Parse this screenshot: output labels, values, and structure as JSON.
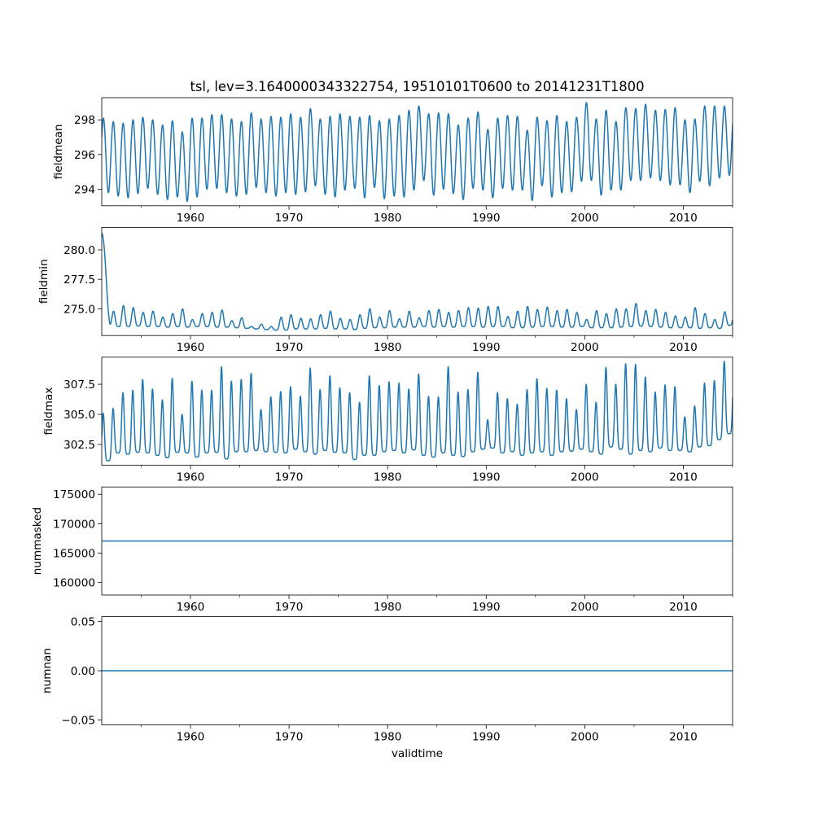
{
  "figure": {
    "title": "tsl, lev=3.1640000343322754, 19510101T0600 to 20141231T1800",
    "xlabel": "validtime",
    "line_color": "#1f77b4"
  },
  "chart_data": [
    {
      "type": "line",
      "ylabel": "fieldmean",
      "xlim": [
        1951.0,
        2015.0
      ],
      "ylim": [
        293.04,
        299.28
      ],
      "xticks": [
        1960,
        1970,
        1980,
        1990,
        2000,
        2010
      ],
      "xtick_labels": [
        "1960",
        "1970",
        "1980",
        "1990",
        "2000",
        "2010"
      ],
      "xminor_ticks": [
        1955,
        1965,
        1975,
        1985,
        1995,
        2005,
        2015
      ],
      "yticks": [
        294,
        296,
        298
      ],
      "ytick_labels": [
        "294",
        "296",
        "298"
      ],
      "series": {
        "description": "seasonal cycle; yearly maxima and minima 1951-2014",
        "start_year": 1951,
        "peak_phase": 0.17,
        "yearly_peaks": [
          298.1,
          297.9,
          297.8,
          298.0,
          298.15,
          298.0,
          297.7,
          297.95,
          297.3,
          298.1,
          298.1,
          298.3,
          298.3,
          298.05,
          297.9,
          298.4,
          298.05,
          298.2,
          298.15,
          298.35,
          298.15,
          298.65,
          298.05,
          298.2,
          298.35,
          298.2,
          298.15,
          298.25,
          297.95,
          298.05,
          298.25,
          298.55,
          298.8,
          298.35,
          298.4,
          298.35,
          297.7,
          298.1,
          298.45,
          297.45,
          298.1,
          298.25,
          298.2,
          297.4,
          298.15,
          297.95,
          298.25,
          297.9,
          298.15,
          299.0,
          298.05,
          298.55,
          297.9,
          298.7,
          298.65,
          298.9,
          298.55,
          298.6,
          298.7,
          298.0,
          298.05,
          298.8,
          298.8,
          298.8
        ],
        "yearly_troughs": [
          293.8,
          293.6,
          293.5,
          293.75,
          294.05,
          293.7,
          293.4,
          293.55,
          293.3,
          293.55,
          294.0,
          294.05,
          293.8,
          293.6,
          293.7,
          294.1,
          293.8,
          293.6,
          293.8,
          293.7,
          293.85,
          294.2,
          293.7,
          293.55,
          293.95,
          294.05,
          293.5,
          294.1,
          293.45,
          293.6,
          293.55,
          293.95,
          294.5,
          293.65,
          294.0,
          293.75,
          293.4,
          294.05,
          293.95,
          293.5,
          294.05,
          293.95,
          293.95,
          293.35,
          294.2,
          293.55,
          293.8,
          293.85,
          294.45,
          294.5,
          293.65,
          293.95,
          293.95,
          294.5,
          294.5,
          294.65,
          294.5,
          294.25,
          294.25,
          293.8,
          294.45,
          294.2,
          294.65,
          294.8
        ]
      }
    },
    {
      "type": "line",
      "ylabel": "fieldmin",
      "xlim": [
        1951.0,
        2015.0
      ],
      "ylim": [
        272.74,
        281.9
      ],
      "xticks": [
        1960,
        1970,
        1980,
        1990,
        2000,
        2010
      ],
      "xtick_labels": [
        "1960",
        "1970",
        "1980",
        "1990",
        "2000",
        "2010"
      ],
      "xminor_ticks": [
        1955,
        1965,
        1975,
        1985,
        1995,
        2005,
        2015
      ],
      "yticks": [
        275.0,
        277.5,
        280.0
      ],
      "ytick_labels": [
        "275.0",
        "277.5",
        "280.0"
      ],
      "series": {
        "description": "initial spin-down from 281.4 during 1951, then seasonal cycle",
        "start_year": 1951,
        "initial_value": 281.4,
        "peak_phase": 0.2,
        "yearly_peaks": [
          274.6,
          274.8,
          275.27,
          275.1,
          274.7,
          274.8,
          274.3,
          274.6,
          275.0,
          274.1,
          274.6,
          274.7,
          274.9,
          274.0,
          274.25,
          273.5,
          273.7,
          273.5,
          274.3,
          274.5,
          274.2,
          274.15,
          274.5,
          274.8,
          274.2,
          274.1,
          274.5,
          275.0,
          274.3,
          274.85,
          274.15,
          274.8,
          274.25,
          274.85,
          274.95,
          274.7,
          274.85,
          275.1,
          275.05,
          275.2,
          275.2,
          274.35,
          274.8,
          275.2,
          274.95,
          275.15,
          274.85,
          274.95,
          274.7,
          274.1,
          274.85,
          274.6,
          275.0,
          275.0,
          275.45,
          274.85,
          274.95,
          274.7,
          274.4,
          274.3,
          275.1,
          274.6,
          274.1,
          274.75
        ],
        "yearly_troughs": [
          273.6,
          273.5,
          273.5,
          273.55,
          273.5,
          273.5,
          273.45,
          273.5,
          273.45,
          273.5,
          273.5,
          273.45,
          273.45,
          273.4,
          273.35,
          273.3,
          273.25,
          273.2,
          273.2,
          273.3,
          273.3,
          273.3,
          273.35,
          273.3,
          273.3,
          273.25,
          273.35,
          273.4,
          273.4,
          273.45,
          273.45,
          273.45,
          273.5,
          273.45,
          273.5,
          273.45,
          273.5,
          273.5,
          273.45,
          273.5,
          273.5,
          273.4,
          273.4,
          273.45,
          273.5,
          273.5,
          273.45,
          273.45,
          273.5,
          273.4,
          273.4,
          273.4,
          273.45,
          273.5,
          273.55,
          273.5,
          273.45,
          273.4,
          273.4,
          273.4,
          273.35,
          273.4,
          273.35,
          273.6
        ]
      }
    },
    {
      "type": "line",
      "ylabel": "fieldmax",
      "xlim": [
        1951.0,
        2015.0
      ],
      "ylim": [
        300.77,
        309.75
      ],
      "xticks": [
        1960,
        1970,
        1980,
        1990,
        2000,
        2010
      ],
      "xtick_labels": [
        "1960",
        "1970",
        "1980",
        "1990",
        "2000",
        "2010"
      ],
      "xminor_ticks": [
        1955,
        1965,
        1975,
        1985,
        1995,
        2005,
        2015
      ],
      "yticks": [
        302.5,
        305.0,
        307.5
      ],
      "ytick_labels": [
        "302.5",
        "305.0",
        "307.5"
      ],
      "series": {
        "description": "spiky seasonal cycle; yearly maxima and minima 1951-2014",
        "start_year": 1951,
        "peak_phase": 0.15,
        "yearly_peaks": [
          305.1,
          305.5,
          306.8,
          307.0,
          307.9,
          307.1,
          306.2,
          308.0,
          305.0,
          307.75,
          307.0,
          307.0,
          308.95,
          307.75,
          307.9,
          308.4,
          305.4,
          306.45,
          306.9,
          307.3,
          306.5,
          308.85,
          307.05,
          308.2,
          307.2,
          306.8,
          306.0,
          308.2,
          307.4,
          307.7,
          307.6,
          307.1,
          308.35,
          306.5,
          306.45,
          308.95,
          306.85,
          307.05,
          308.5,
          304.55,
          306.8,
          306.3,
          305.85,
          307.05,
          307.95,
          307.15,
          307.0,
          306.3,
          305.4,
          307.5,
          306.0,
          308.9,
          307.5,
          309.2,
          309.15,
          308.1,
          306.85,
          307.45,
          307.3,
          304.8,
          305.7,
          307.6,
          307.8,
          309.4
        ],
        "yearly_troughs": [
          301.15,
          301.8,
          301.7,
          301.85,
          301.8,
          301.6,
          301.4,
          301.85,
          301.8,
          301.45,
          301.8,
          301.85,
          301.3,
          301.9,
          301.9,
          302.0,
          301.9,
          301.85,
          301.8,
          302.1,
          301.9,
          301.7,
          302.0,
          301.85,
          301.8,
          301.25,
          301.6,
          301.6,
          301.9,
          302.0,
          301.8,
          302.05,
          301.6,
          301.45,
          301.8,
          301.6,
          301.5,
          301.9,
          302.1,
          302.2,
          301.8,
          301.9,
          301.6,
          301.8,
          301.9,
          301.6,
          301.9,
          301.95,
          302.1,
          301.9,
          301.7,
          302.3,
          302.1,
          301.7,
          302.0,
          301.9,
          302.2,
          302.0,
          302.0,
          301.9,
          302.3,
          302.4,
          302.9,
          303.4
        ]
      }
    },
    {
      "type": "line",
      "ylabel": "nummasked",
      "xlim": [
        1951.0,
        2015.0
      ],
      "ylim": [
        157875,
        176250
      ],
      "xticks": [
        1960,
        1970,
        1980,
        1990,
        2000,
        2010
      ],
      "xtick_labels": [
        "1960",
        "1970",
        "1980",
        "1990",
        "2000",
        "2010"
      ],
      "xminor_ticks": [
        1955,
        1965,
        1975,
        1985,
        1995,
        2005,
        2015
      ],
      "yticks": [
        160000,
        165000,
        170000,
        175000
      ],
      "ytick_labels": [
        "160000",
        "165000",
        "170000",
        "175000"
      ],
      "series": {
        "description": "constant",
        "constant_value": 167064
      }
    },
    {
      "type": "line",
      "ylabel": "numnan",
      "xlim": [
        1951.0,
        2015.0
      ],
      "ylim": [
        -0.055,
        0.055
      ],
      "xticks": [
        1960,
        1970,
        1980,
        1990,
        2000,
        2010
      ],
      "xtick_labels": [
        "1960",
        "1970",
        "1980",
        "1990",
        "2000",
        "2010"
      ],
      "xminor_ticks": [
        1955,
        1965,
        1975,
        1985,
        1995,
        2005,
        2015
      ],
      "yticks": [
        -0.05,
        0.0,
        0.05
      ],
      "ytick_labels": [
        "−0.05",
        "0.00",
        "0.05"
      ],
      "series": {
        "description": "constant",
        "constant_value": 0.0
      }
    }
  ]
}
